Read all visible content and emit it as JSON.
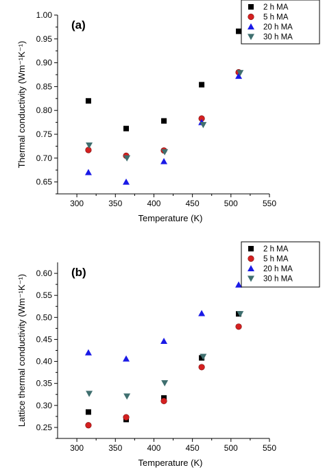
{
  "chart_data": [
    {
      "type": "scatter",
      "panel_label": "(a)",
      "xlabel": "Temperature (K)",
      "ylabel": "Thermal conductivity (Wm⁻¹K⁻¹)",
      "xlim": [
        275,
        550
      ],
      "ylim": [
        0.625,
        1.0
      ],
      "xticks": [
        300,
        350,
        400,
        450,
        500,
        550
      ],
      "yticks": [
        0.65,
        0.7,
        0.75,
        0.8,
        0.85,
        0.9,
        0.95,
        1.0
      ],
      "ytick_labels": [
        "0.65",
        "0.70",
        "0.75",
        "0.80",
        "0.85",
        "0.90",
        "0.95",
        "1.00"
      ],
      "legend_position": "top-right",
      "series": [
        {
          "name": "2 h  MA",
          "marker": "square",
          "color": "#000000",
          "x": [
            315,
            364,
            413,
            462,
            510
          ],
          "y": [
            0.82,
            0.762,
            0.778,
            0.854,
            0.966
          ]
        },
        {
          "name": "5 h  MA",
          "marker": "circle",
          "color": "#d42020",
          "x": [
            315,
            364,
            413,
            462,
            510
          ],
          "y": [
            0.717,
            0.705,
            0.716,
            0.783,
            0.88
          ]
        },
        {
          "name": "20 h  MA",
          "marker": "triangle-up",
          "color": "#1a1ae6",
          "x": [
            315,
            364,
            413,
            462,
            510
          ],
          "y": [
            0.67,
            0.65,
            0.693,
            0.775,
            0.872
          ]
        },
        {
          "name": "30 h  MA",
          "marker": "triangle-down",
          "color": "#3f6f6f",
          "x": [
            316,
            365,
            414,
            464,
            512
          ],
          "y": [
            0.727,
            0.7,
            0.713,
            0.77,
            0.879
          ]
        }
      ]
    },
    {
      "type": "scatter",
      "panel_label": "(b)",
      "xlabel": "Temperature (K)",
      "ylabel": "Lattice thermal conductivity (Wm⁻¹K⁻¹)",
      "xlim": [
        275,
        550
      ],
      "ylim": [
        0.225,
        0.625
      ],
      "xticks": [
        300,
        350,
        400,
        450,
        500,
        550
      ],
      "yticks": [
        0.25,
        0.3,
        0.35,
        0.4,
        0.45,
        0.5,
        0.55,
        0.6
      ],
      "ytick_labels": [
        "0.25",
        "0.30",
        "0.35",
        "0.40",
        "0.45",
        "0.50",
        "0.55",
        "0.60"
      ],
      "legend_position": "top-right",
      "series": [
        {
          "name": "2 h  MA",
          "marker": "square",
          "color": "#000000",
          "x": [
            315,
            364,
            413,
            462,
            510
          ],
          "y": [
            0.285,
            0.268,
            0.317,
            0.408,
            0.508
          ]
        },
        {
          "name": "5 h  MA",
          "marker": "circle",
          "color": "#d42020",
          "x": [
            315,
            364,
            413,
            462,
            510
          ],
          "y": [
            0.255,
            0.273,
            0.31,
            0.387,
            0.479
          ]
        },
        {
          "name": "20 h  MA",
          "marker": "triangle-up",
          "color": "#1a1ae6",
          "x": [
            315,
            364,
            413,
            462,
            510
          ],
          "y": [
            0.42,
            0.406,
            0.446,
            0.509,
            0.574
          ]
        },
        {
          "name": "30 h  MA",
          "marker": "triangle-down",
          "color": "#3f6f6f",
          "x": [
            316,
            365,
            414,
            464,
            512
          ],
          "y": [
            0.327,
            0.321,
            0.351,
            0.411,
            0.508
          ]
        }
      ]
    }
  ]
}
